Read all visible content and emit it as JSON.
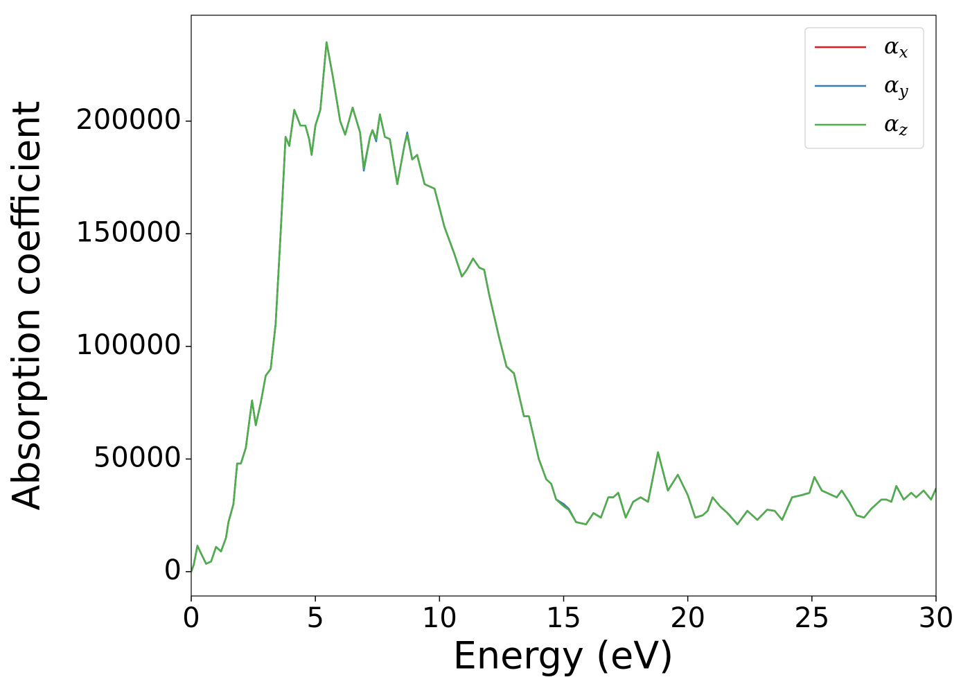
{
  "chart_data": {
    "type": "line",
    "xlabel": "Energy (eV)",
    "ylabel": "Absorption coefficient",
    "x": [
      0,
      0.1,
      0.25,
      0.4,
      0.6,
      0.8,
      1.0,
      1.2,
      1.4,
      1.5,
      1.7,
      1.85,
      2.0,
      2.2,
      2.45,
      2.6,
      2.8,
      3.0,
      3.2,
      3.4,
      3.6,
      3.8,
      3.95,
      4.15,
      4.4,
      4.6,
      4.75,
      4.85,
      5.0,
      5.2,
      5.45,
      5.7,
      6.0,
      6.2,
      6.5,
      6.8,
      6.95,
      7.2,
      7.3,
      7.45,
      7.6,
      7.8,
      8.0,
      8.3,
      8.6,
      8.7,
      8.9,
      9.1,
      9.4,
      9.8,
      10.2,
      10.6,
      10.9,
      11.1,
      11.35,
      11.6,
      11.8,
      12.0,
      12.4,
      12.7,
      13.0,
      13.4,
      13.6,
      14.0,
      14.3,
      14.5,
      14.7,
      15.0,
      15.2,
      15.5,
      15.9,
      16.2,
      16.5,
      16.8,
      17.0,
      17.2,
      17.5,
      17.8,
      18.1,
      18.4,
      18.8,
      19.2,
      19.6,
      20.0,
      20.3,
      20.6,
      20.8,
      21.0,
      21.3,
      21.6,
      22.0,
      22.4,
      22.8,
      23.2,
      23.5,
      23.8,
      24.2,
      24.6,
      24.9,
      25.1,
      25.4,
      25.8,
      26.0,
      26.2,
      26.5,
      26.8,
      27.1,
      27.4,
      27.8,
      28.0,
      28.2,
      28.4,
      28.7,
      29.0,
      29.2,
      29.5,
      29.8,
      30.0
    ],
    "series": [
      {
        "name": "αx",
        "color": "#e41a1c",
        "values": [
          0,
          3000,
          11500,
          8000,
          3500,
          4500,
          11000,
          9000,
          15000,
          22000,
          30000,
          48000,
          48000,
          55000,
          76000,
          65000,
          75000,
          87000,
          90000,
          110000,
          150000,
          193000,
          189000,
          205000,
          198000,
          198000,
          192000,
          185000,
          198000,
          205000,
          235000,
          220000,
          200000,
          194000,
          206000,
          195000,
          179000,
          193000,
          196000,
          192000,
          203000,
          193000,
          192000,
          172000,
          190000,
          194000,
          183000,
          185000,
          172000,
          170000,
          153000,
          141000,
          131000,
          134000,
          139000,
          135000,
          134000,
          123000,
          104000,
          91000,
          88000,
          69000,
          69000,
          50000,
          41000,
          39000,
          32000,
          30000,
          28000,
          22000,
          21000,
          26000,
          24000,
          33000,
          33000,
          35000,
          24000,
          31000,
          33000,
          31000,
          53000,
          36000,
          43000,
          34000,
          24000,
          25000,
          27000,
          33000,
          29000,
          26000,
          21000,
          27000,
          23000,
          27500,
          27000,
          23000,
          33000,
          34000,
          35000,
          42000,
          36000,
          34000,
          33000,
          36000,
          31000,
          25000,
          24000,
          28000,
          32000,
          32000,
          31000,
          38000,
          32000,
          35000,
          33000,
          36000,
          32000,
          37000
        ]
      },
      {
        "name": "αy",
        "color": "#377eb8",
        "values": [
          0,
          3000,
          11500,
          8000,
          3500,
          4500,
          11000,
          9000,
          15000,
          22000,
          30000,
          48000,
          48000,
          55000,
          76000,
          65000,
          75000,
          87000,
          90000,
          110000,
          150000,
          193000,
          189000,
          205000,
          198000,
          198000,
          192000,
          185000,
          198000,
          205000,
          235000,
          220000,
          200000,
          194000,
          206000,
          195000,
          178000,
          193000,
          196000,
          191000,
          203000,
          193000,
          192000,
          172000,
          190000,
          195000,
          183000,
          185000,
          172000,
          170000,
          153000,
          141000,
          131000,
          134000,
          139000,
          135000,
          134000,
          123000,
          104000,
          91000,
          88000,
          69000,
          69000,
          50000,
          41000,
          39000,
          32000,
          30000,
          28000,
          22000,
          21000,
          26000,
          24000,
          33000,
          33000,
          35000,
          24000,
          31000,
          33000,
          31000,
          53000,
          36000,
          43000,
          34000,
          24000,
          25000,
          27000,
          33000,
          29000,
          26000,
          21000,
          27000,
          23000,
          27500,
          27000,
          23000,
          33000,
          34000,
          35000,
          42000,
          36000,
          34000,
          33000,
          36000,
          31000,
          25000,
          24000,
          28000,
          32000,
          32000,
          31000,
          38000,
          32000,
          35000,
          33000,
          36000,
          32000,
          37000
        ]
      },
      {
        "name": "αz",
        "color": "#4daf4a",
        "values": [
          0,
          3000,
          11500,
          8000,
          3500,
          4500,
          11000,
          9000,
          15000,
          22000,
          30000,
          48000,
          48000,
          55000,
          76000,
          65000,
          75000,
          87000,
          90000,
          110000,
          150000,
          193000,
          189000,
          205000,
          198000,
          198000,
          192000,
          185000,
          198000,
          205000,
          235000,
          220000,
          200000,
          194000,
          206000,
          195000,
          179000,
          193000,
          196000,
          192000,
          203000,
          193000,
          192000,
          172000,
          190000,
          194000,
          183000,
          185000,
          172000,
          170000,
          153000,
          141000,
          131000,
          134000,
          139000,
          135000,
          134000,
          123000,
          104000,
          91000,
          88000,
          69000,
          69000,
          50000,
          41000,
          39000,
          32000,
          29000,
          27500,
          22000,
          21000,
          26000,
          24000,
          33000,
          33000,
          35000,
          24000,
          31000,
          33000,
          31000,
          53000,
          36000,
          43000,
          34000,
          24000,
          25000,
          27000,
          33000,
          29000,
          26000,
          21000,
          27000,
          23000,
          27500,
          27000,
          23000,
          33000,
          34000,
          35000,
          42000,
          36000,
          34000,
          33000,
          36000,
          31000,
          25000,
          24000,
          28000,
          32000,
          32000,
          31000,
          38000,
          32000,
          35000,
          33000,
          36000,
          32000,
          37000
        ]
      }
    ],
    "xlim": [
      0,
      30
    ],
    "xticks": [
      0,
      5,
      10,
      15,
      20,
      25,
      30
    ],
    "ylim": [
      -10800,
      247000
    ],
    "yticks": [
      0,
      50000,
      100000,
      150000,
      200000
    ],
    "legend": "upper right"
  }
}
